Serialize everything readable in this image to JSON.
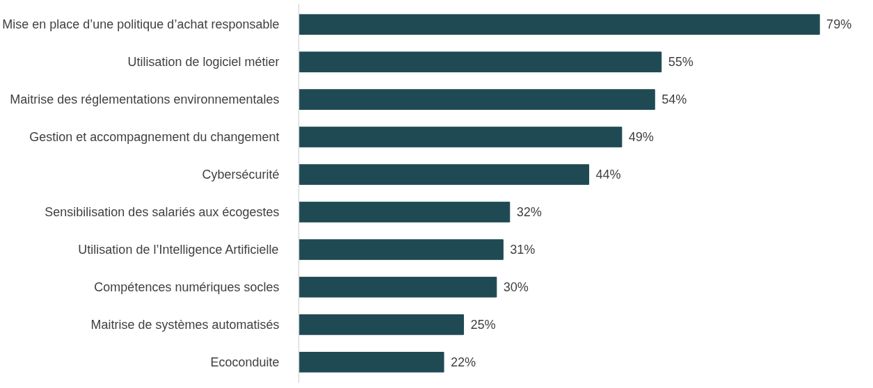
{
  "chart_data": {
    "type": "bar",
    "orientation": "horizontal",
    "categories": [
      "Mise en place d’une politique d’achat responsable",
      "Utilisation de logiciel métier",
      "Maitrise des réglementations environnementales",
      "Gestion et accompagnement du changement",
      "Cybersécurité",
      "Sensibilisation des salariés aux écogestes",
      "Utilisation de l’Intelligence Artificielle",
      "Compétences numériques socles",
      "Maitrise de systèmes automatisés",
      "Ecoconduite"
    ],
    "values": [
      79,
      55,
      54,
      49,
      44,
      32,
      31,
      30,
      25,
      22
    ],
    "value_labels": [
      "79%",
      "55%",
      "54%",
      "49%",
      "44%",
      "32%",
      "31%",
      "30%",
      "25%",
      "22%"
    ],
    "color": "#1f4a53",
    "grid": false
  }
}
